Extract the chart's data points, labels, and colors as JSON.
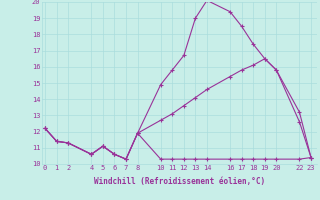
{
  "xlabel": "Windchill (Refroidissement éolien,°C)",
  "bg_color": "#c8eee8",
  "line_color": "#993399",
  "grid_color": "#aadddd",
  "x_ticks": [
    0,
    1,
    2,
    4,
    5,
    6,
    7,
    8,
    10,
    11,
    12,
    13,
    14,
    16,
    17,
    18,
    19,
    20,
    22,
    23
  ],
  "line1_x": [
    0,
    1,
    2,
    4,
    5,
    6,
    7,
    8,
    10,
    11,
    12,
    13,
    14,
    16,
    17,
    18,
    19,
    20,
    22,
    23
  ],
  "line1_y": [
    12.2,
    11.4,
    11.3,
    10.6,
    11.1,
    10.6,
    10.3,
    11.9,
    10.3,
    10.3,
    10.3,
    10.3,
    10.3,
    10.3,
    10.3,
    10.3,
    10.3,
    10.3,
    10.3,
    10.4
  ],
  "line2_x": [
    0,
    1,
    2,
    4,
    5,
    6,
    7,
    8,
    10,
    11,
    12,
    13,
    14,
    16,
    17,
    18,
    19,
    20,
    22,
    23
  ],
  "line2_y": [
    12.2,
    11.4,
    11.3,
    10.6,
    11.1,
    10.6,
    10.3,
    11.9,
    14.9,
    15.8,
    16.7,
    19.0,
    20.1,
    19.4,
    18.5,
    17.4,
    16.5,
    15.8,
    12.6,
    10.4
  ],
  "line3_x": [
    0,
    1,
    2,
    4,
    5,
    6,
    7,
    8,
    10,
    11,
    12,
    13,
    14,
    16,
    17,
    18,
    19,
    20,
    22,
    23
  ],
  "line3_y": [
    12.2,
    11.4,
    11.3,
    10.6,
    11.1,
    10.6,
    10.3,
    11.9,
    12.7,
    13.1,
    13.6,
    14.1,
    14.6,
    15.4,
    15.8,
    16.1,
    16.5,
    15.8,
    13.2,
    10.4
  ],
  "ylim": [
    10,
    20
  ],
  "yticks": [
    10,
    11,
    12,
    13,
    14,
    15,
    16,
    17,
    18,
    19,
    20
  ],
  "xlim": [
    -0.3,
    23.5
  ],
  "marker": "+",
  "markersize": 3.5,
  "linewidth": 0.8,
  "tick_fontsize": 5.0,
  "xlabel_fontsize": 5.5
}
